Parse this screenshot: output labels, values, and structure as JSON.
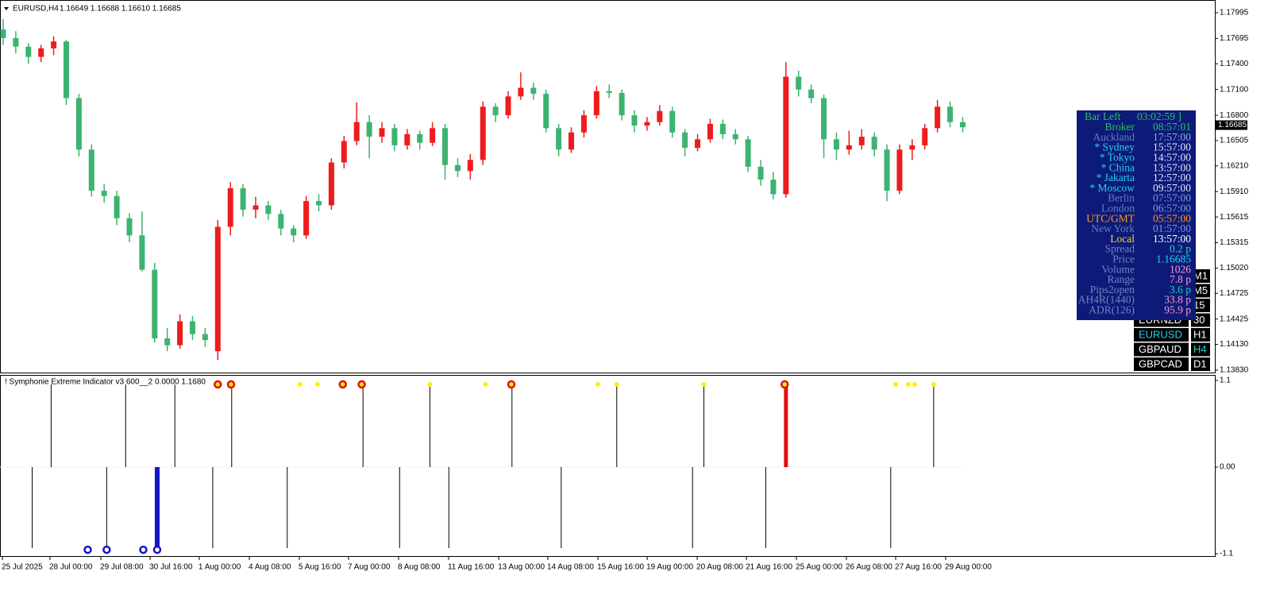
{
  "chart_data": [
    {
      "type": "candlestick",
      "title": "EURUSD,H4",
      "quote": "1.16649 1.16688 1.16610 1.16685",
      "up_color": "#ee1c1c",
      "down_color": "#3cb371",
      "xlim": [
        0.75,
        96.97
      ],
      "ylim": [
        1.13811,
        1.18097
      ],
      "yticks": [
        {
          "value": 1.17995,
          "label": "1.17995"
        },
        {
          "value": 1.17695,
          "label": "1.17695"
        },
        {
          "value": 1.174,
          "label": "1.17400"
        },
        {
          "value": 1.171,
          "label": "1.17100"
        },
        {
          "value": 1.168,
          "label": "1.16800"
        },
        {
          "value": 1.16505,
          "label": "1.16505"
        },
        {
          "value": 1.1621,
          "label": "1.16210"
        },
        {
          "value": 1.1591,
          "label": "1.15910"
        },
        {
          "value": 1.15615,
          "label": "1.15615"
        },
        {
          "value": 1.15315,
          "label": "1.15315"
        },
        {
          "value": 1.1502,
          "label": "1.15020"
        },
        {
          "value": 1.14725,
          "label": "1.14725"
        },
        {
          "value": 1.14425,
          "label": "1.14425"
        },
        {
          "value": 1.1413,
          "label": "1.14130"
        },
        {
          "value": 1.1383,
          "label": "1.13830"
        }
      ],
      "last_price": {
        "value": 1.16685,
        "label": "1.16685"
      },
      "candles": [
        [
          1.178,
          1.1792,
          1.1762,
          1.177
        ],
        [
          1.177,
          1.1778,
          1.1752,
          1.176
        ],
        [
          1.176,
          1.1764,
          1.174,
          1.1748
        ],
        [
          1.1748,
          1.1762,
          1.1742,
          1.1758
        ],
        [
          1.1758,
          1.1772,
          1.175,
          1.1766
        ],
        [
          1.1766,
          1.1768,
          1.1692,
          1.17
        ],
        [
          1.17,
          1.1705,
          1.1632,
          1.164
        ],
        [
          1.164,
          1.1646,
          1.1585,
          1.1592
        ],
        [
          1.1592,
          1.16,
          1.1578,
          1.1586
        ],
        [
          1.1586,
          1.1592,
          1.1552,
          1.156
        ],
        [
          1.156,
          1.1566,
          1.1532,
          1.154
        ],
        [
          1.154,
          1.1568,
          1.1498,
          1.15
        ],
        [
          1.15,
          1.1508,
          1.1415,
          1.142
        ],
        [
          1.142,
          1.1432,
          1.1405,
          1.1412
        ],
        [
          1.1412,
          1.1448,
          1.1408,
          1.144
        ],
        [
          1.144,
          1.1446,
          1.1418,
          1.1425
        ],
        [
          1.1425,
          1.1432,
          1.141,
          1.1418
        ],
        [
          1.1405,
          1.1558,
          1.1395,
          1.155
        ],
        [
          1.155,
          1.1602,
          1.154,
          1.1595
        ],
        [
          1.1595,
          1.16,
          1.1562,
          1.157
        ],
        [
          1.157,
          1.1585,
          1.156,
          1.1575
        ],
        [
          1.1575,
          1.158,
          1.1558,
          1.1565
        ],
        [
          1.1565,
          1.157,
          1.154,
          1.1548
        ],
        [
          1.1548,
          1.1552,
          1.1532,
          1.154
        ],
        [
          1.154,
          1.1586,
          1.1536,
          1.158
        ],
        [
          1.158,
          1.1588,
          1.1568,
          1.1575
        ],
        [
          1.1575,
          1.163,
          1.157,
          1.1625
        ],
        [
          1.1625,
          1.1656,
          1.1618,
          1.165
        ],
        [
          1.165,
          1.1695,
          1.1645,
          1.1672
        ],
        [
          1.1672,
          1.168,
          1.163,
          1.1655
        ],
        [
          1.1655,
          1.1672,
          1.1648,
          1.1665
        ],
        [
          1.1665,
          1.167,
          1.1638,
          1.1645
        ],
        [
          1.1645,
          1.1664,
          1.164,
          1.1658
        ],
        [
          1.1658,
          1.1662,
          1.164,
          1.1648
        ],
        [
          1.1648,
          1.1672,
          1.1644,
          1.1665
        ],
        [
          1.1665,
          1.167,
          1.1605,
          1.1622
        ],
        [
          1.1622,
          1.163,
          1.1608,
          1.1615
        ],
        [
          1.1615,
          1.1635,
          1.1605,
          1.1628
        ],
        [
          1.1628,
          1.1696,
          1.1622,
          1.169
        ],
        [
          1.169,
          1.1694,
          1.1672,
          1.168
        ],
        [
          1.168,
          1.1708,
          1.1676,
          1.1702
        ],
        [
          1.1702,
          1.173,
          1.1698,
          1.1712
        ],
        [
          1.1712,
          1.1718,
          1.1698,
          1.1705
        ],
        [
          1.1705,
          1.171,
          1.166,
          1.1665
        ],
        [
          1.1665,
          1.167,
          1.1632,
          1.164
        ],
        [
          1.164,
          1.1666,
          1.1636,
          1.166
        ],
        [
          1.166,
          1.1686,
          1.1654,
          1.168
        ],
        [
          1.168,
          1.1714,
          1.1676,
          1.1708
        ],
        [
          1.1708,
          1.1716,
          1.17,
          1.1706
        ],
        [
          1.1706,
          1.171,
          1.1674,
          1.168
        ],
        [
          1.168,
          1.1686,
          1.166,
          1.1668
        ],
        [
          1.1668,
          1.1678,
          1.1662,
          1.1672
        ],
        [
          1.1672,
          1.1692,
          1.1668,
          1.1685
        ],
        [
          1.1685,
          1.169,
          1.1654,
          1.166
        ],
        [
          1.166,
          1.1664,
          1.1632,
          1.1642
        ],
        [
          1.1642,
          1.1658,
          1.1638,
          1.1652
        ],
        [
          1.1652,
          1.1676,
          1.1648,
          1.167
        ],
        [
          1.167,
          1.1675,
          1.1652,
          1.1658
        ],
        [
          1.1658,
          1.1664,
          1.1646,
          1.1652
        ],
        [
          1.1652,
          1.1656,
          1.1614,
          1.162
        ],
        [
          1.162,
          1.1628,
          1.1598,
          1.1605
        ],
        [
          1.1605,
          1.1614,
          1.1582,
          1.1588
        ],
        [
          1.1588,
          1.1742,
          1.1584,
          1.1725
        ],
        [
          1.1725,
          1.1732,
          1.1702,
          1.171
        ],
        [
          1.171,
          1.1716,
          1.1694,
          1.17
        ],
        [
          1.17,
          1.1704,
          1.163,
          1.1652
        ],
        [
          1.1652,
          1.166,
          1.1628,
          1.164
        ],
        [
          1.164,
          1.1662,
          1.1634,
          1.1645
        ],
        [
          1.1645,
          1.1664,
          1.164,
          1.1655
        ],
        [
          1.1655,
          1.166,
          1.1632,
          1.164
        ],
        [
          1.164,
          1.1646,
          1.158,
          1.1592
        ],
        [
          1.1592,
          1.1646,
          1.1588,
          1.164
        ],
        [
          1.164,
          1.1652,
          1.1628,
          1.1645
        ],
        [
          1.1645,
          1.167,
          1.164,
          1.1665
        ],
        [
          1.1665,
          1.1698,
          1.166,
          1.169
        ],
        [
          1.169,
          1.1696,
          1.1666,
          1.1672
        ],
        [
          1.1672,
          1.1678,
          1.166,
          1.1666
        ]
      ]
    },
    {
      "type": "indicator",
      "title": "! Symphonie Extreme Indicator v3 600__2 0.0000 1.1680",
      "xlim": [
        0.75,
        96.97
      ],
      "ylim": [
        -1.13,
        1.16
      ],
      "yticks": [
        1.1,
        {
          "value": 0,
          "label": "0.00"
        },
        -1.1
      ],
      "xticks": [
        {
          "value": 0.94,
          "label": "25 Jul 2025"
        },
        {
          "value": 4.71,
          "label": "28 Jul 00:00"
        },
        {
          "value": 8.74,
          "label": "29 Jul 08:00"
        },
        {
          "value": 12.64,
          "label": "30 Jul 16:00"
        },
        {
          "value": 16.53,
          "label": "1 Aug 00:00"
        },
        {
          "value": 20.5,
          "label": "4 Aug 08:00"
        },
        {
          "value": 24.46,
          "label": "5 Aug 16:00"
        },
        {
          "value": 28.36,
          "label": "7 Aug 00:00"
        },
        {
          "value": 32.32,
          "label": "8 Aug 08:00"
        },
        {
          "value": 36.28,
          "label": "11 Aug 16:00"
        },
        {
          "value": 40.25,
          "label": "13 Aug 00:00"
        },
        {
          "value": 44.14,
          "label": "14 Aug 08:00"
        },
        {
          "value": 48.11,
          "label": "15 Aug 16:00"
        },
        {
          "value": 52.01,
          "label": "19 Aug 00:00"
        },
        {
          "value": 55.97,
          "label": "20 Aug 08:00"
        },
        {
          "value": 59.87,
          "label": "21 Aug 16:00"
        },
        {
          "value": 63.83,
          "label": "25 Aug 00:00"
        },
        {
          "value": 67.79,
          "label": "26 Aug 08:00"
        },
        {
          "value": 71.69,
          "label": "27 Aug 16:00"
        },
        {
          "value": 75.65,
          "label": "29 Aug 00:00"
        }
      ],
      "series": [
        {
          "style": "line",
          "color": "#000000",
          "width": 1,
          "x": [
            4.8,
            10.7,
            14.6,
            19.1,
            29.5,
            34.8,
            41.3,
            49.6,
            56.5,
            74.7
          ],
          "values": [
            1.05,
            1.05,
            1.05,
            1.05,
            1.05,
            1.05,
            1.05,
            1.05,
            1.05,
            1.05
          ]
        },
        {
          "style": "line",
          "color": "#000000",
          "width": 1,
          "x": [
            3.3,
            9.2,
            17.6,
            23.5,
            32.4,
            36.3,
            45.2,
            55.6,
            61.4,
            71.3
          ],
          "values": [
            -1.03,
            -1.03,
            -1.03,
            -1.03,
            -1.03,
            -1.03,
            -1.03,
            -1.03,
            -1.03,
            -1.03
          ]
        },
        {
          "style": "line",
          "color": "#e01010",
          "width": 5,
          "x": [
            63
          ],
          "values": [
            1.05
          ]
        },
        {
          "style": "line",
          "color": "#1414c8",
          "width": 6,
          "x": [
            13.2
          ],
          "values": [
            -1.03
          ]
        },
        {
          "style": "ring",
          "color": "#e01010",
          "fill": "#ffee00",
          "x": [
            18.0,
            19.05,
            27.9,
            29.4,
            41.25,
            62.9
          ],
          "values": [
            1.05,
            1.05,
            1.05,
            1.05,
            1.05,
            1.05
          ]
        },
        {
          "style": "dot",
          "color": "#ffee00",
          "x": [
            24.5,
            25.9,
            34.8,
            39.2,
            48.1,
            49.6,
            56.5,
            71.7,
            72.7,
            73.2,
            74.7
          ],
          "values": [
            1.05,
            1.05,
            1.05,
            1.05,
            1.05,
            1.05,
            1.05,
            1.05,
            1.05,
            1.05,
            1.05
          ]
        },
        {
          "style": "ring",
          "color": "#1414c8",
          "fill": "#ffffff",
          "x": [
            7.7,
            9.2,
            12.1,
            13.2
          ],
          "values": [
            -1.05,
            -1.05,
            -1.05,
            -1.05
          ]
        }
      ]
    }
  ],
  "panel": {
    "title": "Bar Left",
    "title_value": "03:02:59 ]",
    "rows": [
      {
        "label": "Broker",
        "value": "08:57:01",
        "label_color": "#22c55e",
        "value_color": "#22c55e"
      },
      {
        "label": "Auckland",
        "value": "17:57:00",
        "label_color": "#5f7fbf",
        "value_color": "#8fa8e0"
      },
      {
        "label": "* Sydney",
        "value": "15:57:00",
        "label_color": "#22d3ee",
        "value_color": "#e0e6ff"
      },
      {
        "label": "* Tokyo",
        "value": "14:57:00",
        "label_color": "#22d3ee",
        "value_color": "#e0e6ff"
      },
      {
        "label": "* China",
        "value": "13:57:00",
        "label_color": "#22d3ee",
        "value_color": "#e0e6ff"
      },
      {
        "label": "* Jakarta",
        "value": "12:57:00",
        "label_color": "#22d3ee",
        "value_color": "#e0e6ff"
      },
      {
        "label": "* Moscow",
        "value": "09:57:00",
        "label_color": "#22d3ee",
        "value_color": "#e0e6ff"
      },
      {
        "label": "Berlin",
        "value": "07:57:00",
        "label_color": "#5f7fbf",
        "value_color": "#7f98d0"
      },
      {
        "label": "London",
        "value": "06:57:00",
        "label_color": "#5f7fbf",
        "value_color": "#7f98d0"
      },
      {
        "label": "UTC/GMT",
        "value": "05:57:00",
        "label_color": "#ff9a1a",
        "value_color": "#ff9a1a"
      },
      {
        "label": "New York",
        "value": "01:57:00",
        "label_color": "#5f7fbf",
        "value_color": "#7f98d0"
      },
      {
        "label": "Local",
        "value": "13:57:00",
        "label_color": "#ffd21a",
        "value_color": "#ffffff"
      },
      {
        "label": "Spread",
        "value": "0.2 p",
        "label_color": "#6f86c0",
        "value_color": "#22d3c0"
      },
      {
        "label": "Price",
        "value": "1.16685",
        "label_color": "#6f86c0",
        "value_color": "#22d3ee"
      },
      {
        "label": "Volume",
        "value": "1026",
        "label_color": "#6f86c0",
        "value_color": "#ff9ad0"
      },
      {
        "label": "Range",
        "value": "7.8 p",
        "label_color": "#6f86c0",
        "value_color": "#ff9ad0"
      },
      {
        "label": "Pips2open",
        "value": "3.6 p",
        "label_color": "#6f86c0",
        "value_color": "#22d3c0"
      },
      {
        "label": "AH4R(1440)",
        "value": "33.8 p",
        "label_color": "#6f86c0",
        "value_color": "#ff9ad0"
      },
      {
        "label": "ADR(126)",
        "value": "95.9 p",
        "label_color": "#6f86c0",
        "value_color": "#ff9ad0"
      }
    ]
  },
  "buttons": {
    "timeframes": [
      "M1",
      "M5",
      "15",
      "30",
      "H1",
      "H4",
      "D1"
    ],
    "symbols": [
      "EURNZD",
      "EURUSD",
      "GBPAUD",
      "GBPCAD"
    ]
  }
}
